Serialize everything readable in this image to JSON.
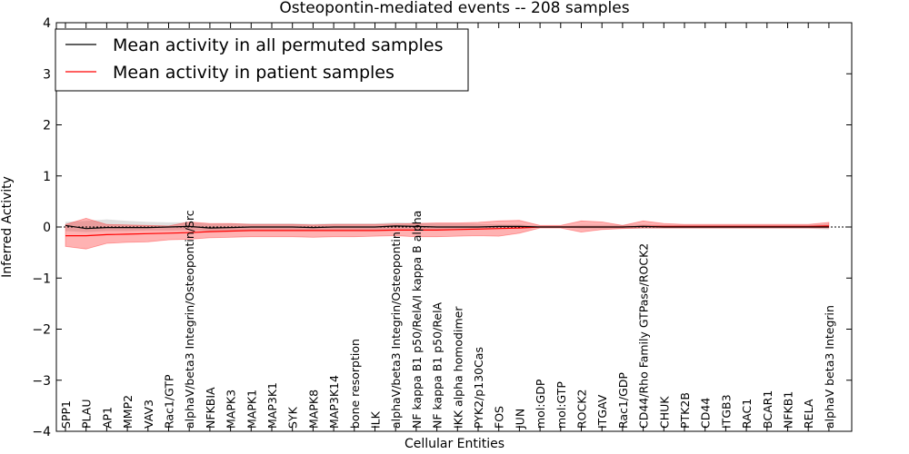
{
  "chart_data": {
    "type": "line",
    "title": "Osteopontin-mediated events -- 208 samples",
    "xlabel": "Cellular Entities",
    "ylabel": "Inferred Activity",
    "ylim": [
      -4,
      4
    ],
    "yticks": [
      -4,
      -3,
      -2,
      -1,
      0,
      1,
      2,
      3,
      4
    ],
    "ytick_labels": [
      "−4",
      "−3",
      "−2",
      "−1",
      "0",
      "1",
      "2",
      "3",
      "4"
    ],
    "legend_position": "top-left",
    "categories": [
      "SPP1",
      "PLAU",
      "AP1",
      "MMP2",
      "VAV3",
      "Rac1/GTP",
      "alphaV/beta3 Integrin/Osteopontin/Src",
      "NFKBIA",
      "MAPK3",
      "MAPK1",
      "MAP3K1",
      "SYK",
      "MAPK8",
      "MAP3K14",
      "bone resorption",
      "ILK",
      "alphaV/beta3 Integrin/Osteopontin",
      "NF kappa B1 p50/RelA/I kappa B alpha",
      "NF kappa B1 p50/RelA",
      "IKK alpha homodimer",
      "PYK2/p130Cas",
      "FOS",
      "JUN",
      "mol:GDP",
      "mol:GTP",
      "ROCK2",
      "ITGAV",
      "Rac1/GDP",
      "CD44/Rho Family GTPase/ROCK2",
      "CHUK",
      "PTK2B",
      "CD44",
      "ITGB3",
      "RAC1",
      "BCAR1",
      "NFKB1",
      "RELA",
      "alphaV beta3 Integrin"
    ],
    "series": [
      {
        "name": "Mean activity in all permuted samples",
        "color": "#000000",
        "values": [
          0.03,
          -0.03,
          -0.01,
          -0.01,
          -0.01,
          0.0,
          0.01,
          -0.02,
          -0.01,
          0.0,
          0.0,
          0.0,
          -0.01,
          0.0,
          0.0,
          0.0,
          0.02,
          0.01,
          0.0,
          0.0,
          0.0,
          0.01,
          0.01,
          0.0,
          0.0,
          0.0,
          0.0,
          0.0,
          0.01,
          0.0,
          0.0,
          0.0,
          0.0,
          0.0,
          0.0,
          0.0,
          0.0,
          0.0
        ],
        "band_low": [
          -0.08,
          -0.1,
          -0.08,
          -0.08,
          -0.07,
          -0.07,
          -0.06,
          -0.08,
          -0.07,
          -0.06,
          -0.06,
          -0.06,
          -0.07,
          -0.06,
          -0.06,
          -0.06,
          -0.05,
          -0.05,
          -0.06,
          -0.06,
          -0.05,
          -0.03,
          -0.03,
          -0.01,
          -0.01,
          -0.03,
          -0.03,
          -0.03,
          -0.03,
          -0.03,
          -0.03,
          -0.03,
          -0.03,
          -0.03,
          -0.03,
          -0.03,
          -0.03,
          -0.05
        ],
        "band_high": [
          0.1,
          0.12,
          0.15,
          0.12,
          0.1,
          0.09,
          0.09,
          0.06,
          0.07,
          0.07,
          0.07,
          0.07,
          0.06,
          0.07,
          0.07,
          0.07,
          0.09,
          0.08,
          0.07,
          0.07,
          0.06,
          0.05,
          0.05,
          0.02,
          0.02,
          0.04,
          0.04,
          0.04,
          0.05,
          0.04,
          0.04,
          0.04,
          0.04,
          0.04,
          0.04,
          0.04,
          0.04,
          0.06
        ]
      },
      {
        "name": "Mean activity in patient samples",
        "color": "#ff0000",
        "values": [
          -0.17,
          -0.17,
          -0.15,
          -0.14,
          -0.13,
          -0.12,
          -0.11,
          -0.09,
          -0.08,
          -0.07,
          -0.07,
          -0.07,
          -0.07,
          -0.07,
          -0.07,
          -0.07,
          -0.06,
          -0.06,
          -0.06,
          -0.05,
          -0.04,
          -0.03,
          -0.02,
          0.0,
          0.0,
          0.0,
          0.0,
          0.0,
          0.01,
          0.01,
          0.01,
          0.01,
          0.01,
          0.01,
          0.01,
          0.01,
          0.01,
          0.02
        ],
        "band_low": [
          -0.38,
          -0.43,
          -0.32,
          -0.3,
          -0.29,
          -0.25,
          -0.24,
          -0.21,
          -0.2,
          -0.19,
          -0.19,
          -0.19,
          -0.2,
          -0.19,
          -0.19,
          -0.18,
          -0.17,
          -0.19,
          -0.19,
          -0.18,
          -0.17,
          -0.18,
          -0.12,
          -0.02,
          -0.02,
          -0.1,
          -0.05,
          -0.03,
          -0.02,
          -0.02,
          -0.02,
          -0.02,
          -0.02,
          -0.02,
          -0.02,
          -0.02,
          -0.02,
          -0.02
        ],
        "band_high": [
          0.05,
          0.17,
          0.05,
          0.04,
          0.03,
          0.02,
          0.1,
          0.07,
          0.07,
          0.05,
          0.05,
          0.05,
          0.04,
          0.05,
          0.05,
          0.05,
          0.06,
          0.07,
          0.08,
          0.08,
          0.09,
          0.12,
          0.13,
          0.03,
          0.03,
          0.12,
          0.1,
          0.03,
          0.12,
          0.07,
          0.05,
          0.05,
          0.05,
          0.05,
          0.05,
          0.05,
          0.05,
          0.09
        ]
      }
    ]
  }
}
